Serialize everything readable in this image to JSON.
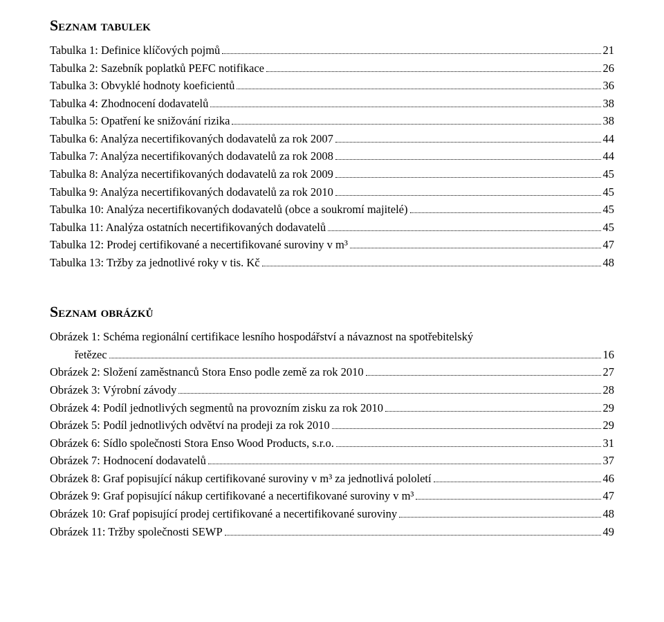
{
  "headings": {
    "tables": "Seznam tabulek",
    "figures": "Seznam obrázků"
  },
  "tables": [
    {
      "label": "Tabulka 1: Definice klíčových pojmů",
      "page": "21"
    },
    {
      "label": "Tabulka 2: Sazebník poplatků PEFC notifikace",
      "page": "26"
    },
    {
      "label": "Tabulka 3: Obvyklé hodnoty koeficientů",
      "page": "36"
    },
    {
      "label": "Tabulka 4: Zhodnocení dodavatelů",
      "page": "38"
    },
    {
      "label": "Tabulka 5: Opatření ke snižování rizika",
      "page": "38"
    },
    {
      "label": "Tabulka 6: Analýza necertifikovaných dodavatelů za rok 2007",
      "page": "44"
    },
    {
      "label": "Tabulka 7: Analýza necertifikovaných dodavatelů za rok 2008",
      "page": "44"
    },
    {
      "label": "Tabulka 8: Analýza necertifikovaných dodavatelů za rok 2009",
      "page": "45"
    },
    {
      "label": "Tabulka 9: Analýza necertifikovaných dodavatelů za rok 2010",
      "page": "45"
    },
    {
      "label": "Tabulka 10: Analýza necertifikovaných dodavatelů (obce a soukromí majitelé)",
      "page": "45"
    },
    {
      "label": "Tabulka 11: Analýza ostatních necertifikovaných dodavatelů",
      "page": "45"
    },
    {
      "label": "Tabulka 12: Prodej certifikované a necertifikované suroviny v m³",
      "page": "47"
    },
    {
      "label": "Tabulka 13: Tržby za jednotlivé roky v tis. Kč",
      "page": "48"
    }
  ],
  "figures_intro": {
    "line1": "Obrázek 1: Schéma regionální certifikace lesního hospodářství a návaznost na spotřebitelský",
    "line2_label": "řetězec",
    "line2_page": "16"
  },
  "figures": [
    {
      "label": "Obrázek 2: Složení zaměstnanců Stora Enso podle země za rok 2010",
      "page": "27"
    },
    {
      "label": "Obrázek 3: Výrobní závody",
      "page": "28"
    },
    {
      "label": "Obrázek 4: Podíl jednotlivých segmentů na provozním zisku za rok 2010",
      "page": "29"
    },
    {
      "label": "Obrázek 5: Podíl jednotlivých odvětví na prodeji za rok 2010",
      "page": "29"
    },
    {
      "label": "Obrázek 6: Sídlo společnosti Stora Enso Wood Products, s.r.o.",
      "page": "31"
    },
    {
      "label": "Obrázek 7: Hodnocení dodavatelů",
      "page": "37"
    },
    {
      "label": "Obrázek 8: Graf popisující nákup certifikované suroviny v m³ za jednotlivá pololetí",
      "page": "46"
    },
    {
      "label": "Obrázek 9: Graf popisující nákup certifikované a necertifikované suroviny v m³",
      "page": "47"
    },
    {
      "label": "Obrázek 10: Graf popisující prodej certifikované a necertifikované suroviny",
      "page": "48"
    },
    {
      "label": "Obrázek 11: Tržby společnosti SEWP",
      "page": "49"
    }
  ]
}
